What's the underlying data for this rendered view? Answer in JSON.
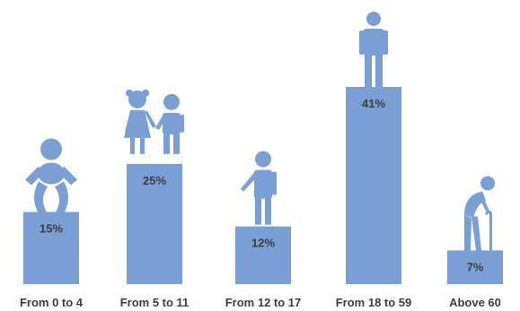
{
  "chart_data": {
    "type": "bar",
    "categories": [
      "From 0 to 4",
      "From 5 to 11",
      "From 12 to 17",
      "From 18 to 59",
      "Above 60"
    ],
    "values": [
      15,
      25,
      12,
      41,
      7
    ],
    "value_labels": [
      "15%",
      "25%",
      "12%",
      "41%",
      "7%"
    ],
    "unit": "%",
    "icons": [
      "baby-icon",
      "children-icon",
      "teen-icon",
      "adult-icon",
      "elderly-icon"
    ],
    "colors": {
      "bar": "#7a9fd5",
      "icon": "#7a9fd5",
      "text": "#3d3d3d"
    },
    "title": "",
    "xlabel": "",
    "ylabel": "",
    "ylim": [
      0,
      41
    ],
    "grid": false,
    "legend": "none"
  }
}
